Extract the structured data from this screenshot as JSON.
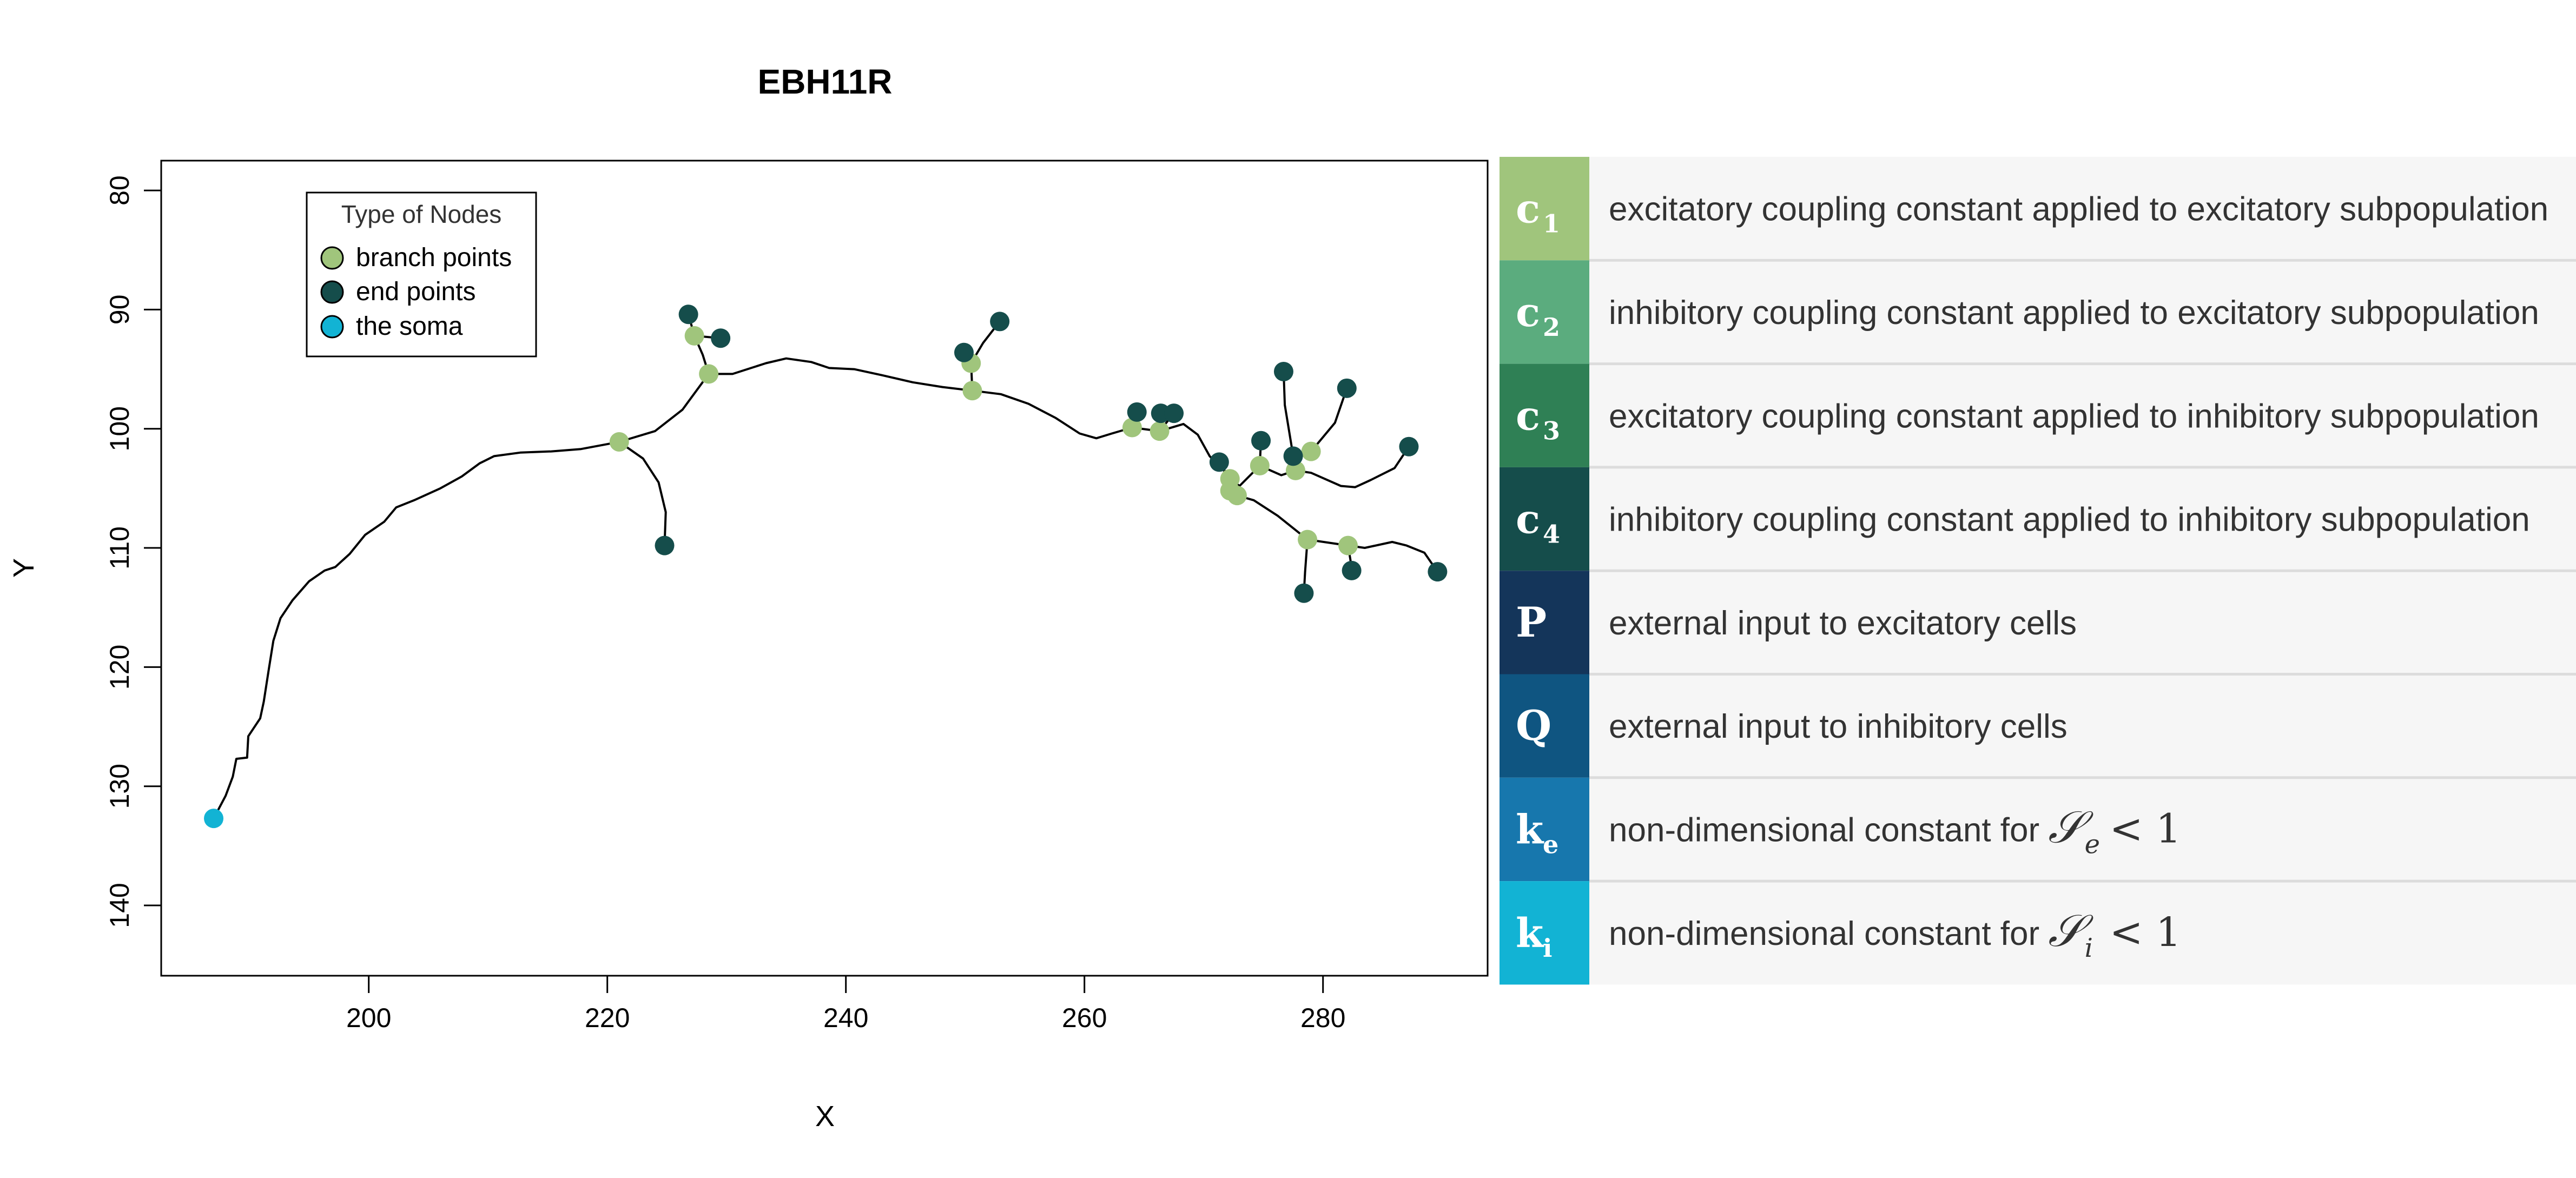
{
  "chart_data": {
    "type": "scatter",
    "title": "EBH11R",
    "xlabel": "X",
    "ylabel": "Y",
    "xlim": [
      182.6,
      293.8
    ],
    "ylim": [
      145.9,
      77.5
    ],
    "y_reversed": true,
    "x_ticks": [
      200,
      220,
      240,
      260,
      280
    ],
    "y_ticks": [
      80,
      90,
      100,
      110,
      120,
      130,
      140
    ],
    "legend": {
      "title": "Type of Nodes",
      "position": "top-left",
      "entries": [
        {
          "label": "branch points",
          "color": "#a0c57c"
        },
        {
          "label": "end points",
          "color": "#154d4b"
        },
        {
          "label": "the soma",
          "color": "#12b3d4"
        }
      ]
    },
    "trace": [
      [
        187.0,
        132.7
      ],
      [
        188.0,
        130.8
      ],
      [
        188.6,
        129.2
      ],
      [
        188.9,
        127.7
      ],
      [
        189.8,
        127.6
      ],
      [
        189.9,
        125.8
      ],
      [
        190.9,
        124.3
      ],
      [
        191.2,
        122.9
      ],
      [
        191.6,
        120.3
      ],
      [
        192.0,
        117.8
      ],
      [
        192.6,
        115.9
      ],
      [
        193.6,
        114.4
      ],
      [
        195.0,
        112.8
      ],
      [
        196.3,
        111.9
      ],
      [
        197.2,
        111.6
      ],
      [
        198.4,
        110.5
      ],
      [
        199.7,
        108.9
      ],
      [
        201.3,
        107.8
      ],
      [
        202.3,
        106.6
      ],
      [
        203.8,
        106.0
      ],
      [
        206.0,
        105.0
      ],
      [
        207.8,
        104.0
      ],
      [
        209.3,
        102.9
      ],
      [
        210.5,
        102.3
      ],
      [
        212.7,
        102.0
      ],
      [
        215.3,
        101.9
      ],
      [
        217.8,
        101.7
      ],
      [
        221.0,
        101.1
      ],
      [
        224.0,
        100.2
      ],
      [
        226.3,
        98.4
      ],
      [
        228.5,
        95.4
      ],
      [
        230.5,
        95.4
      ],
      [
        233.3,
        94.5
      ],
      [
        235.0,
        94.1
      ],
      [
        237.1,
        94.4
      ],
      [
        238.6,
        94.9
      ],
      [
        240.7,
        95.0
      ],
      [
        243.0,
        95.5
      ],
      [
        245.6,
        96.1
      ],
      [
        248.1,
        96.5
      ],
      [
        250.6,
        96.8
      ],
      [
        253.0,
        97.1
      ],
      [
        255.3,
        97.9
      ],
      [
        257.6,
        99.1
      ],
      [
        259.6,
        100.4
      ],
      [
        261.0,
        100.8
      ],
      [
        262.3,
        100.4
      ],
      [
        264.0,
        99.9
      ],
      [
        266.3,
        100.2
      ],
      [
        268.3,
        99.6
      ],
      [
        269.5,
        100.5
      ],
      [
        270.5,
        102.3
      ],
      [
        271.6,
        103.4
      ],
      [
        272.2,
        104.2
      ],
      [
        273.0,
        104.8
      ],
      [
        274.7,
        103.1
      ],
      [
        276.5,
        103.9
      ],
      [
        277.7,
        103.5
      ],
      [
        279.0,
        103.7
      ],
      [
        281.5,
        104.8
      ],
      [
        282.7,
        104.9
      ],
      [
        284.0,
        104.3
      ],
      [
        286.0,
        103.3
      ],
      [
        287.2,
        101.5
      ]
    ],
    "sub_branches": [
      [
        [
          221.0,
          101.1
        ],
        [
          223.0,
          102.5
        ],
        [
          224.3,
          104.5
        ],
        [
          224.9,
          107.0
        ],
        [
          224.8,
          109.8
        ]
      ],
      [
        [
          228.5,
          95.4
        ],
        [
          228.0,
          93.8
        ],
        [
          227.3,
          92.2
        ],
        [
          226.8,
          90.4
        ]
      ],
      [
        [
          227.3,
          92.2
        ],
        [
          229.5,
          92.4
        ]
      ],
      [
        [
          250.6,
          96.8
        ],
        [
          250.5,
          94.5
        ],
        [
          250.1,
          93.6
        ],
        [
          249.9,
          93.6
        ]
      ],
      [
        [
          250.5,
          94.5
        ],
        [
          251.5,
          92.8
        ],
        [
          252.9,
          91.0
        ]
      ],
      [
        [
          264.0,
          99.9
        ],
        [
          264.4,
          98.6
        ]
      ],
      [
        [
          266.3,
          100.2
        ],
        [
          266.4,
          98.7
        ]
      ],
      [
        [
          266.3,
          100.2
        ],
        [
          267.5,
          98.7
        ]
      ],
      [
        [
          272.2,
          104.2
        ],
        [
          271.3,
          102.8
        ]
      ],
      [
        [
          274.7,
          103.1
        ],
        [
          274.8,
          101.0
        ]
      ],
      [
        [
          277.7,
          103.5
        ],
        [
          276.8,
          98.0
        ],
        [
          276.7,
          95.2
        ]
      ],
      [
        [
          279.0,
          101.9
        ],
        [
          281.0,
          99.5
        ],
        [
          282.0,
          96.6
        ]
      ],
      [
        [
          279.0,
          101.9
        ],
        [
          277.5,
          102.3
        ]
      ],
      [
        [
          272.2,
          104.2
        ],
        [
          272.0,
          105.2
        ],
        [
          272.8,
          105.6
        ],
        [
          274.2,
          106.0
        ],
        [
          276.2,
          107.3
        ],
        [
          278.7,
          109.3
        ],
        [
          282.1,
          109.8
        ],
        [
          283.5,
          110.0
        ],
        [
          285.8,
          109.5
        ],
        [
          287.0,
          109.8
        ],
        [
          288.5,
          110.4
        ],
        [
          289.6,
          112.0
        ]
      ],
      [
        [
          278.7,
          109.3
        ],
        [
          278.5,
          112.0
        ],
        [
          278.4,
          113.8
        ]
      ],
      [
        [
          282.1,
          109.8
        ],
        [
          282.3,
          111.0
        ],
        [
          282.4,
          111.9
        ]
      ]
    ],
    "branch_points": [
      [
        221.0,
        101.1
      ],
      [
        228.5,
        95.4
      ],
      [
        227.3,
        92.2
      ],
      [
        250.6,
        96.8
      ],
      [
        250.5,
        94.5
      ],
      [
        264.0,
        99.9
      ],
      [
        266.3,
        100.2
      ],
      [
        272.2,
        104.2
      ],
      [
        272.2,
        105.2
      ],
      [
        272.8,
        105.6
      ],
      [
        274.7,
        103.1
      ],
      [
        277.7,
        103.5
      ],
      [
        279.0,
        101.9
      ],
      [
        278.7,
        109.3
      ],
      [
        282.1,
        109.8
      ]
    ],
    "end_points": [
      [
        224.8,
        109.8
      ],
      [
        226.8,
        90.4
      ],
      [
        229.5,
        92.4
      ],
      [
        249.9,
        93.6
      ],
      [
        252.9,
        91.0
      ],
      [
        264.4,
        98.6
      ],
      [
        266.4,
        98.7
      ],
      [
        267.5,
        98.7
      ],
      [
        271.3,
        102.8
      ],
      [
        274.8,
        101.0
      ],
      [
        276.7,
        95.2
      ],
      [
        277.5,
        102.3
      ],
      [
        282.0,
        96.6
      ],
      [
        287.2,
        101.5
      ],
      [
        289.6,
        112.0
      ],
      [
        278.4,
        113.8
      ],
      [
        282.4,
        111.9
      ]
    ],
    "soma": [
      [
        187.0,
        132.7
      ]
    ]
  },
  "parameters": [
    {
      "symbol": "c",
      "subscript": "1",
      "color": "#a0c57c",
      "text": "excitatory coupling constant applied to excitatory subpopulation"
    },
    {
      "symbol": "c",
      "subscript": "2",
      "color": "#5bac7e",
      "text": "inhibitory coupling constant applied to excitatory subpopulation"
    },
    {
      "symbol": "c",
      "subscript": "3",
      "color": "#2f8055",
      "text": "excitatory coupling constant applied to inhibitory subpopulation"
    },
    {
      "symbol": "c",
      "subscript": "4",
      "color": "#154d4b",
      "text": "inhibitory coupling constant applied to inhibitory subpopulation"
    },
    {
      "symbol": "P",
      "subscript": "",
      "color": "#14355a",
      "text": "external input to excitatory cells"
    },
    {
      "symbol": "Q",
      "subscript": "",
      "color": "#0f5581",
      "text": "external input to inhibitory cells"
    },
    {
      "symbol": "k",
      "subscript": "e",
      "color": "#1777ad",
      "text": "non-dimensional constant for",
      "math_var": "𝒮",
      "math_sub": "e",
      "math_rel": "< 1"
    },
    {
      "symbol": "k",
      "subscript": "i",
      "color": "#12b3d4",
      "text": "non-dimensional constant for",
      "math_var": "𝒮",
      "math_sub": "i",
      "math_rel": "< 1"
    }
  ]
}
